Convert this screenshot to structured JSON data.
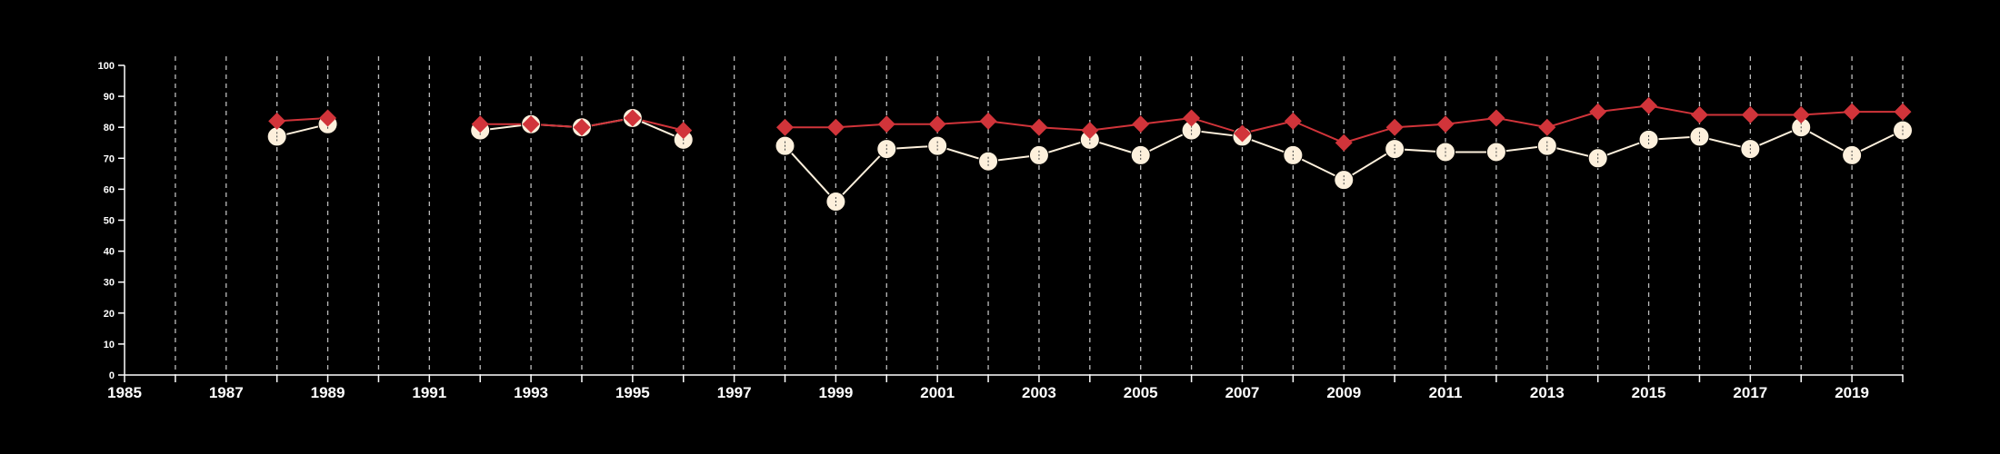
{
  "chart_data": {
    "type": "line",
    "title": "",
    "xlabel": "",
    "ylabel": "",
    "xlim": [
      1985,
      2020
    ],
    "ylim": [
      0,
      100
    ],
    "y_ticks": [
      0,
      10,
      20,
      30,
      40,
      50,
      60,
      70,
      80,
      90,
      100
    ],
    "x_tick_labels": [
      1985,
      1987,
      1989,
      1991,
      1993,
      1995,
      1997,
      1999,
      2001,
      2003,
      2005,
      2007,
      2009,
      2011,
      2013,
      2015,
      2017,
      2019
    ],
    "vertical_gridlines_every_year": true,
    "gridline_style": "dashed",
    "x": [
      1988,
      1989,
      1992,
      1993,
      1994,
      1995,
      1996,
      1998,
      1999,
      2000,
      2001,
      2002,
      2003,
      2004,
      2005,
      2006,
      2007,
      2008,
      2009,
      2010,
      2011,
      2012,
      2013,
      2014,
      2015,
      2016,
      2017,
      2018,
      2019,
      2020
    ],
    "series": [
      {
        "color": "#fdf0dc",
        "marker": "circle",
        "values": [
          77,
          81,
          79,
          81,
          80,
          83,
          76,
          74,
          56,
          73,
          74,
          69,
          71,
          76,
          71,
          79,
          77,
          71,
          63,
          73,
          72,
          72,
          74,
          70,
          76,
          77,
          73,
          80,
          71,
          79
        ]
      },
      {
        "color": "#d1343a",
        "marker": "diamond",
        "values": [
          82,
          83,
          81,
          81,
          80,
          83,
          79,
          80,
          80,
          81,
          81,
          82,
          80,
          79,
          81,
          83,
          78,
          82,
          75,
          80,
          81,
          83,
          80,
          85,
          87,
          84,
          84,
          84,
          85,
          85
        ]
      }
    ]
  }
}
